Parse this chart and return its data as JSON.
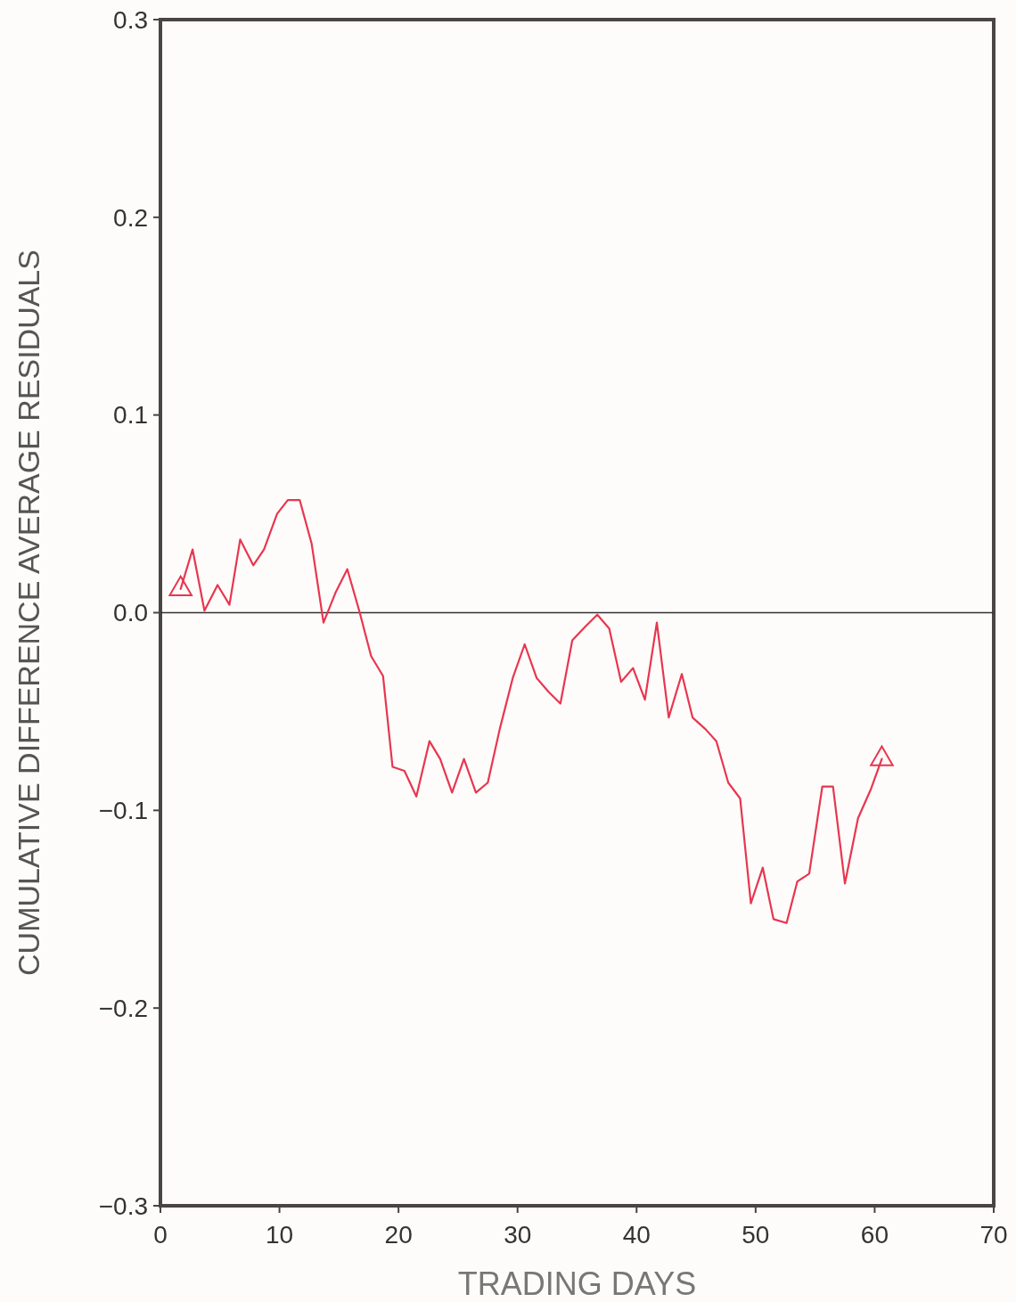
{
  "chart_data": {
    "type": "line",
    "xlabel": "TRADING DAYS",
    "ylabel": "CUMULATIVE DIFFERENCE AVERAGE RESIDUALS",
    "xlim": [
      0,
      70
    ],
    "xticks": [
      0,
      10,
      20,
      30,
      40,
      50,
      60,
      70
    ],
    "ylim": [
      -0.3,
      0.3
    ],
    "yticks": [
      {
        "value": -0.3,
        "label": "−0.3"
      },
      {
        "value": -0.2,
        "label": "−0.2"
      },
      {
        "value": -0.1,
        "label": "−0.1"
      },
      {
        "value": 0,
        "label": "0.0"
      },
      {
        "value": 0.1,
        "label": "0.1"
      },
      {
        "value": 0.2,
        "label": "0.2"
      },
      {
        "value": 0.3,
        "label": "0.3"
      }
    ],
    "grid": false,
    "ref_lines": [
      {
        "axis": "y",
        "value": 0,
        "color": "#333333"
      }
    ],
    "series": [
      {
        "color": "#e8364f",
        "marker": "none",
        "x": [
          1.7,
          2.7,
          3.7,
          4.8,
          5.8,
          6.7,
          7.8,
          8.7,
          9.8,
          10.7,
          11.7,
          12.7,
          13.7,
          14.7,
          15.7,
          16.7,
          17.7,
          18.7,
          19.5,
          20.5,
          21.5,
          22.6,
          23.5,
          24.5,
          25.5,
          26.5,
          27.5,
          28.5,
          29.6,
          30.6,
          31.6,
          32.6,
          33.6,
          34.6,
          35.7,
          36.7,
          37.7,
          38.7,
          39.7,
          40.7,
          41.7,
          42.7,
          43.8,
          44.7,
          45.8,
          46.7,
          47.7,
          48.7,
          49.6,
          50.6,
          51.5,
          52.6,
          53.5,
          54.5,
          55.6,
          56.5,
          57.5,
          58.6,
          59.7,
          60.6
        ],
        "values": [
          0.012,
          0.032,
          0.001,
          0.014,
          0.004,
          0.037,
          0.024,
          0.032,
          0.05,
          0.057,
          0.057,
          0.035,
          -0.005,
          0.01,
          0.022,
          0.001,
          -0.022,
          -0.032,
          -0.078,
          -0.08,
          -0.093,
          -0.065,
          -0.074,
          -0.091,
          -0.074,
          -0.091,
          -0.086,
          -0.059,
          -0.033,
          -0.016,
          -0.033,
          -0.04,
          -0.046,
          -0.014,
          -0.007,
          -0.001,
          -0.008,
          -0.035,
          -0.028,
          -0.044,
          -0.005,
          -0.053,
          -0.031,
          -0.053,
          -0.059,
          -0.065,
          -0.086,
          -0.094,
          -0.147,
          -0.129,
          -0.155,
          -0.157,
          -0.136,
          -0.132,
          -0.088,
          -0.088,
          -0.137,
          -0.104,
          -0.089,
          -0.074
        ]
      },
      {
        "type": "scatter",
        "color": "#e8364f",
        "marker": "triangle",
        "x": [
          1.7,
          60.6
        ],
        "values": [
          0.012,
          -0.074
        ]
      }
    ]
  }
}
